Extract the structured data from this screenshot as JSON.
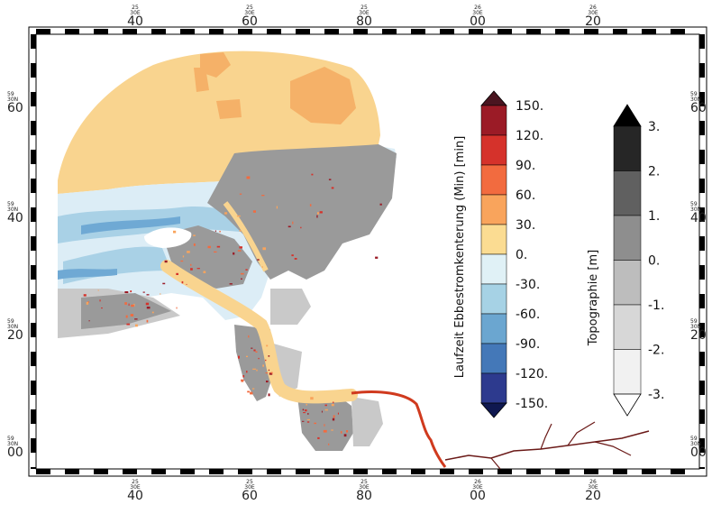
{
  "map": {
    "x_ticks": [
      {
        "sup": "25",
        "sub": "30E",
        "main": "40"
      },
      {
        "sup": "25",
        "sub": "30E",
        "main": "60"
      },
      {
        "sup": "25",
        "sub": "30E",
        "main": "80"
      },
      {
        "sup": "26",
        "sub": "30E",
        "main": "00"
      },
      {
        "sup": "26",
        "sub": "30E",
        "main": "20"
      }
    ],
    "y_ticks": [
      {
        "sup": "59",
        "sub": "30N",
        "main": "60"
      },
      {
        "sup": "59",
        "sub": "30N",
        "main": "40"
      },
      {
        "sup": "59",
        "sub": "30N",
        "main": "20"
      },
      {
        "sup": "59",
        "sub": "30N",
        "main": "00"
      }
    ],
    "colors": {
      "sea_positive": "#f9d48f",
      "sea_orange": "#f5b168",
      "channel_light": "#dcedf6",
      "channel_mid": "#a9d1e6",
      "channel_deep": "#6fa9d4",
      "land_gray": "#9a9a9a",
      "land_light": "#c9c9c9",
      "river": "#d03a1e"
    }
  },
  "colorbar_time": {
    "title": "Laufzeit Ebbestromkenterung (Min) [min]",
    "labels": [
      "150.",
      "120.",
      "90.",
      "60.",
      "30.",
      "0.",
      "-30.",
      "-60.",
      "-90.",
      "-120.",
      "-150."
    ],
    "colors": [
      "#9b1b26",
      "#d5322b",
      "#f26b3f",
      "#f9a45c",
      "#fbdc92",
      "#e0f1f6",
      "#a6d2e5",
      "#6ba6d0",
      "#4478b8",
      "#2d3a8e"
    ],
    "over_color": "#4a1520",
    "under_color": "#0f1850"
  },
  "colorbar_topo": {
    "title": "Topographie [m]",
    "labels": [
      "3.",
      "2.",
      "1.",
      "0.",
      "-1.",
      "-2.",
      "-3."
    ],
    "colors": [
      "#262626",
      "#606060",
      "#8e8e8e",
      "#bdbdbd",
      "#d7d7d7",
      "#f1f1f1"
    ],
    "over_color": "#000000",
    "under_color": "#ffffff"
  }
}
